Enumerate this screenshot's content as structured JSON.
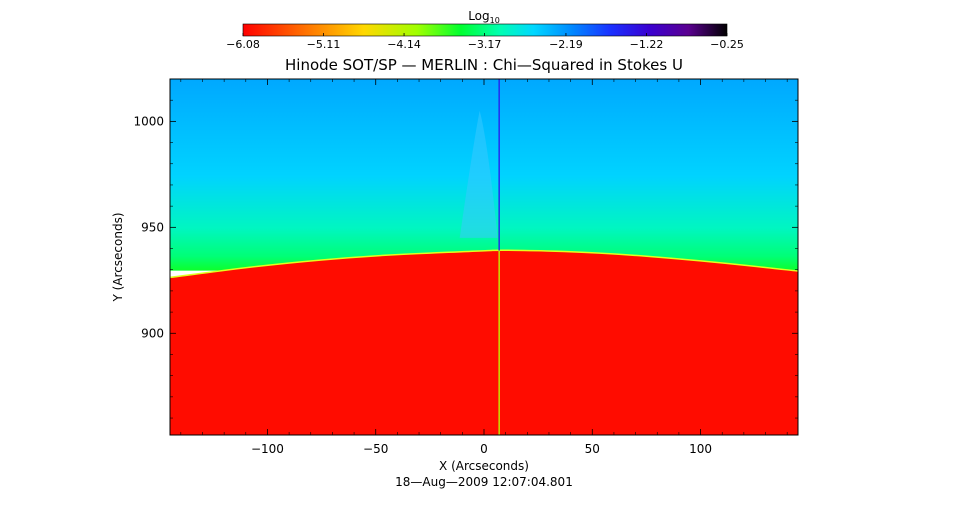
{
  "chart_data": {
    "type": "heatmap",
    "title": "Hinode SOT/SP — MERLIN : Chi—Squared in Stokes U",
    "xlabel": "X (Arcseconds)",
    "ylabel": "Y (Arcseconds)",
    "timestamp": "18—Aug—2009 12:07:04.801",
    "xlim": [
      -145,
      145
    ],
    "ylim": [
      852,
      1020
    ],
    "xticks": [
      -100,
      -50,
      0,
      50,
      100
    ],
    "xtick_labels": [
      "−100",
      "−50",
      "0",
      "50",
      "100"
    ],
    "yticks": [
      900,
      950,
      1000
    ],
    "ytick_labels": [
      "900",
      "950",
      "1000"
    ],
    "colorbar": {
      "label_base": "Log",
      "label_sub": "10",
      "range": [
        -6.08,
        -0.25
      ],
      "ticks": [
        -6.08,
        -5.11,
        -4.14,
        -3.17,
        -2.19,
        -1.22,
        -0.25
      ],
      "tick_labels": [
        "−6.08",
        "−5.11",
        "−4.14",
        "−3.17",
        "−2.19",
        "−1.22",
        "−0.25"
      ]
    },
    "limb": {
      "x": [
        -145,
        -100,
        -50,
        0,
        8,
        50,
        100,
        145
      ],
      "y": [
        926,
        932,
        936.5,
        938.5,
        939,
        938,
        934,
        929
      ],
      "below_value": -6.0,
      "off_limb_gradient": [
        {
          "height_above_limb": 0,
          "value": -3.5
        },
        {
          "height_above_limb": 6,
          "value": -3.2
        },
        {
          "height_above_limb": 18,
          "value": -2.9
        },
        {
          "height_above_limb": 40,
          "value": -2.55
        },
        {
          "height_above_limb": 82,
          "value": -2.3
        }
      ]
    },
    "features": [
      {
        "name": "slit-artifact",
        "x": 7,
        "upper_value": -1.5,
        "lower_value": -4.2
      }
    ]
  }
}
